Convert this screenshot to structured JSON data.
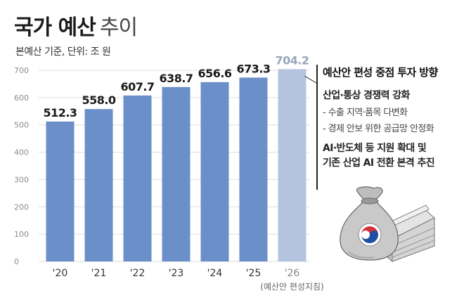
{
  "title": {
    "main": "국가 예산",
    "light": "추이"
  },
  "unit": "본예산 기준, 단위: 조 원",
  "annotation": {
    "title": "예산안 편성 중점 투자 방향",
    "heading1": "산업·통상 경쟁력 강화",
    "items": [
      "- 수출 지역·품목 다변화",
      "- 경제 안보 위한 공급망 안정화"
    ],
    "heading2_lines": [
      "AI·반도체 등 지원 확대 및",
      "기존 산업 AI 전환 본격 추진"
    ]
  },
  "colors": {
    "bar": "#6b8fc9",
    "bar_highlight": "#b4c4e0",
    "grid": "#dddddd"
  },
  "icons": [
    "money-bag-icon",
    "taegeuk-emblem-icon",
    "cash-stack-icon"
  ],
  "chart_data": {
    "type": "bar",
    "categories": [
      "'20",
      "'21",
      "'22",
      "'23",
      "'24",
      "'25",
      "'26"
    ],
    "category_notes": [
      "",
      "",
      "",
      "",
      "",
      "",
      "(예산안 편성지침)"
    ],
    "values": [
      512.3,
      558.0,
      607.7,
      638.7,
      656.6,
      673.3,
      704.2
    ],
    "value_labels": [
      "512.3",
      "558.0",
      "607.7",
      "638.7",
      "656.6",
      "673.3",
      "704.2"
    ],
    "highlight_index": 6,
    "yticks": [
      0,
      100,
      200,
      300,
      400,
      500,
      600,
      700
    ],
    "ylim": [
      0,
      700
    ],
    "grid": true
  }
}
